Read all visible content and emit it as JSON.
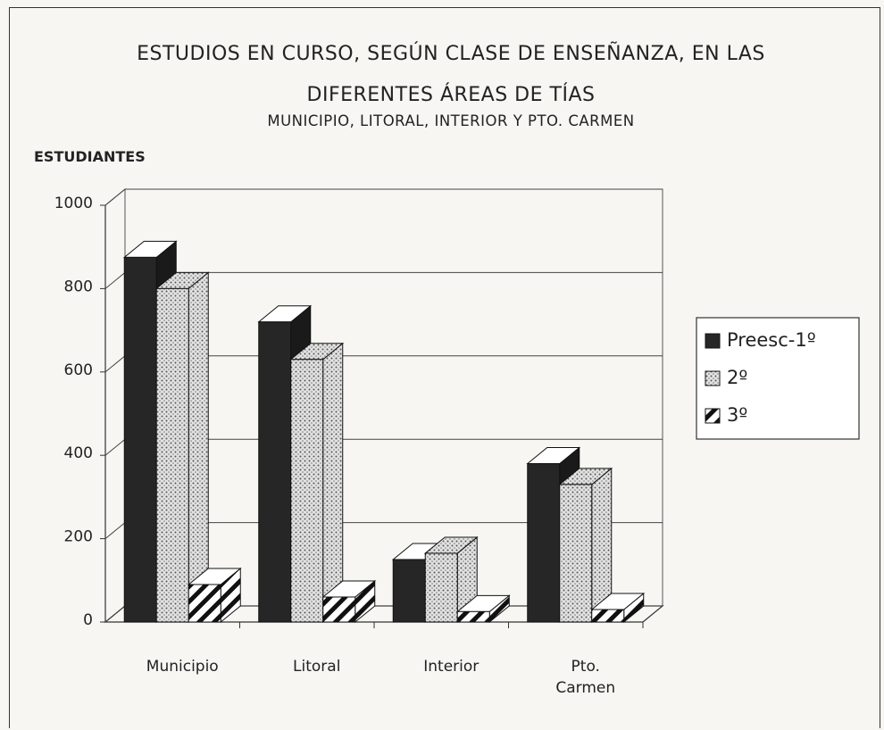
{
  "chart_data": {
    "type": "bar3d",
    "title": "ESTUDIOS EN CURSO, SEGÚN CLASE DE ENSEÑANZA, EN LAS DIFERENTES ÁREAS DE TÍAS",
    "subtitle": "MUNICIPIO, LITORAL, INTERIOR Y PTO. CARMEN",
    "y_label": "ESTUDIANTES",
    "categories": [
      "Municipio",
      "Litoral",
      "Interior",
      "Pto. Carmen"
    ],
    "series": [
      {
        "name": "Preesc-1º",
        "color": "#262626",
        "pattern": "solid",
        "values": [
          875,
          720,
          150,
          380
        ]
      },
      {
        "name": "2º",
        "color": "#d4d4d4",
        "pattern": "dots",
        "values": [
          800,
          630,
          165,
          330
        ]
      },
      {
        "name": "3º",
        "color": "#ffffff",
        "pattern": "stripes",
        "values": [
          90,
          60,
          25,
          30
        ]
      }
    ],
    "ylim": [
      0,
      1000
    ],
    "yticks": [
      0,
      200,
      400,
      600,
      800,
      1000
    ],
    "grid": true,
    "legend": "right"
  }
}
